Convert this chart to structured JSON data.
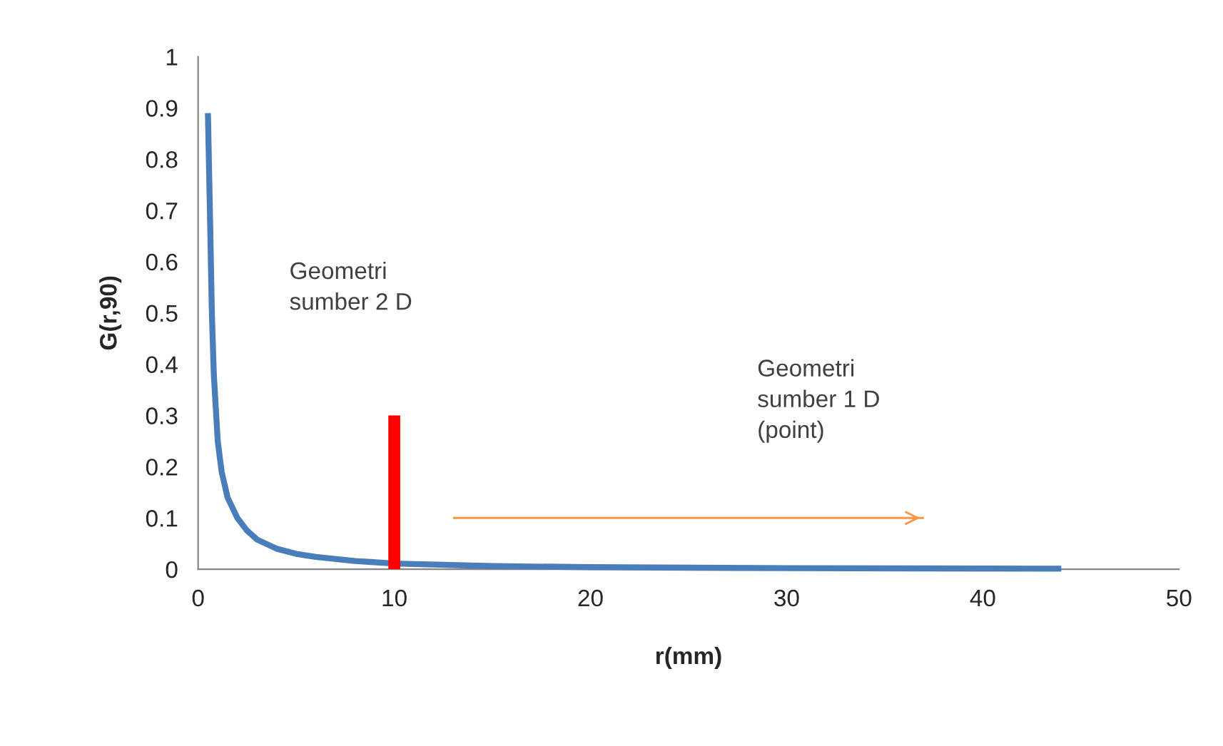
{
  "chart_data": {
    "type": "line",
    "xlabel": "r(mm)",
    "ylabel": "G(r,90)",
    "xlim": [
      0,
      50
    ],
    "xticks": [
      0,
      10,
      20,
      30,
      40,
      50
    ],
    "ylim": [
      0,
      1
    ],
    "yticks": [
      0,
      0.1,
      0.2,
      0.3,
      0.4,
      0.5,
      0.6,
      0.7,
      0.8,
      0.9,
      1
    ],
    "grid": false,
    "legend": false,
    "marker": "none",
    "line_style": "solid",
    "series": [
      {
        "color": "#4a7ebb",
        "x": [
          0.5,
          0.6,
          0.7,
          0.8,
          1.0,
          1.2,
          1.5,
          2,
          2.5,
          3,
          4,
          5,
          6,
          8,
          10,
          15,
          20,
          30,
          44
        ],
        "values": [
          0.89,
          0.7,
          0.5,
          0.38,
          0.25,
          0.19,
          0.14,
          0.1,
          0.075,
          0.058,
          0.04,
          0.03,
          0.024,
          0.016,
          0.011,
          0.006,
          0.004,
          0.002,
          0.001
        ]
      },
      {
        "color": "#ff0000",
        "x": [
          10,
          10
        ],
        "values": [
          0,
          0.3
        ]
      },
      {
        "color": "#f79646",
        "x": [
          13,
          37
        ],
        "values": [
          0.1,
          0.1
        ]
      }
    ],
    "annotations": [
      "Geometri\nsumber 2 D",
      "Geometri\nsumber 1 D\n(point)"
    ]
  }
}
